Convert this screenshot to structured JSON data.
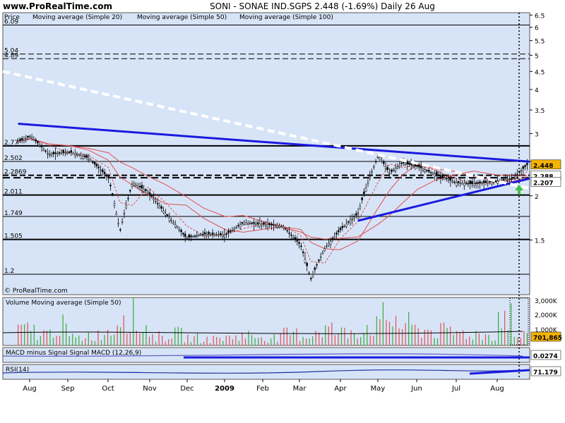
{
  "header": {
    "site": "www.ProRealTime.com",
    "title": "SONI - SONAE IND.SGPS    2.448 (-1.69%)    Daily  26 Aug"
  },
  "price_panel": {
    "label": "Price",
    "ma20": "Moving average (Simple 20)",
    "ma50": "Moving average (Simple 50)",
    "ma100": "Moving average (Simple 100)",
    "watermark": "© ProRealTime.com",
    "last_price_tag": "2.448",
    "ma_tag_1": "2.288",
    "ma_tag_2": "2.207"
  },
  "volume_panel": {
    "label": "Volume Moving average (Simple 50)",
    "last_tag": "701,865"
  },
  "macd_panel": {
    "label": "MACD minus Signal  Signal MACD (12,26,9)",
    "last_tag": "0.0274"
  },
  "rsi_panel": {
    "label": "RSI(14)",
    "last_tag": "71.179"
  },
  "colors": {
    "bg": "#d7e4f7",
    "trend": "#1a1adf",
    "ma": "#e05050",
    "volume": "#3aaa3a",
    "tag_orange": "#f5b400"
  },
  "chart_data": {
    "type": "line",
    "title": "SONI - SONAE IND.SGPS",
    "y_scale": "log",
    "ylim": [
      1.05,
      6.6
    ],
    "right_axis_ticks": [
      "6.5",
      "6",
      "5.5",
      "5",
      "4.5",
      "4",
      "3.5",
      "3",
      "2.5",
      "2",
      "1.5"
    ],
    "x_tick_labels": [
      "Aug",
      "Sep",
      "Oct",
      "Nov",
      "Dec",
      "2009",
      "Feb",
      "Mar",
      "Apr",
      "May",
      "Jun",
      "Jul",
      "Aug"
    ],
    "horizontal_levels": [
      {
        "label": "6.09",
        "value": 6.09
      },
      {
        "label": "5.04",
        "value": 5.04
      },
      {
        "label": "4.89",
        "value": 4.89
      },
      {
        "label": "2.77",
        "value": 2.77
      },
      {
        "label": "2.502",
        "value": 2.502
      },
      {
        "label": "2.2869",
        "value": 2.2869
      },
      {
        "label": "2.011",
        "value": 2.011
      },
      {
        "label": "1.749",
        "value": 1.749
      },
      {
        "label": "1.505",
        "value": 1.505
      },
      {
        "label": "1.2",
        "value": 1.2
      }
    ],
    "series": [
      {
        "name": "Price",
        "x": [
          "2008-07-22",
          "2008-08-01",
          "2008-08-15",
          "2008-09-01",
          "2008-09-15",
          "2008-10-01",
          "2008-10-10",
          "2008-10-20",
          "2008-11-01",
          "2008-11-15",
          "2008-12-01",
          "2008-12-15",
          "2009-01-01",
          "2009-01-15",
          "2009-02-01",
          "2009-02-15",
          "2009-03-01",
          "2009-03-09",
          "2009-03-20",
          "2009-04-01",
          "2009-04-15",
          "2009-05-01",
          "2009-05-10",
          "2009-05-20",
          "2009-06-01",
          "2009-06-15",
          "2009-07-01",
          "2009-07-15",
          "2009-08-01",
          "2009-08-15",
          "2009-08-26"
        ],
        "values": [
          2.85,
          2.95,
          2.62,
          2.66,
          2.56,
          2.25,
          1.58,
          2.18,
          2.05,
          1.78,
          1.52,
          1.56,
          1.55,
          1.68,
          1.66,
          1.64,
          1.45,
          1.16,
          1.42,
          1.6,
          1.78,
          2.6,
          2.32,
          2.48,
          2.42,
          2.3,
          2.18,
          2.16,
          2.2,
          2.24,
          2.448
        ]
      },
      {
        "name": "Volume",
        "values": [
          1.2,
          0.9,
          1.5,
          0.6,
          0.8,
          1.1,
          2.6,
          1.4,
          0.7,
          0.9,
          0.6,
          0.5,
          0.6,
          0.8,
          0.7,
          0.6,
          0.9,
          0.8,
          1.3,
          1.0,
          1.2,
          1.5,
          2.1,
          1.6,
          1.2,
          1.1,
          1.0,
          0.9,
          0.8,
          2.3,
          0.7
        ]
      }
    ]
  }
}
